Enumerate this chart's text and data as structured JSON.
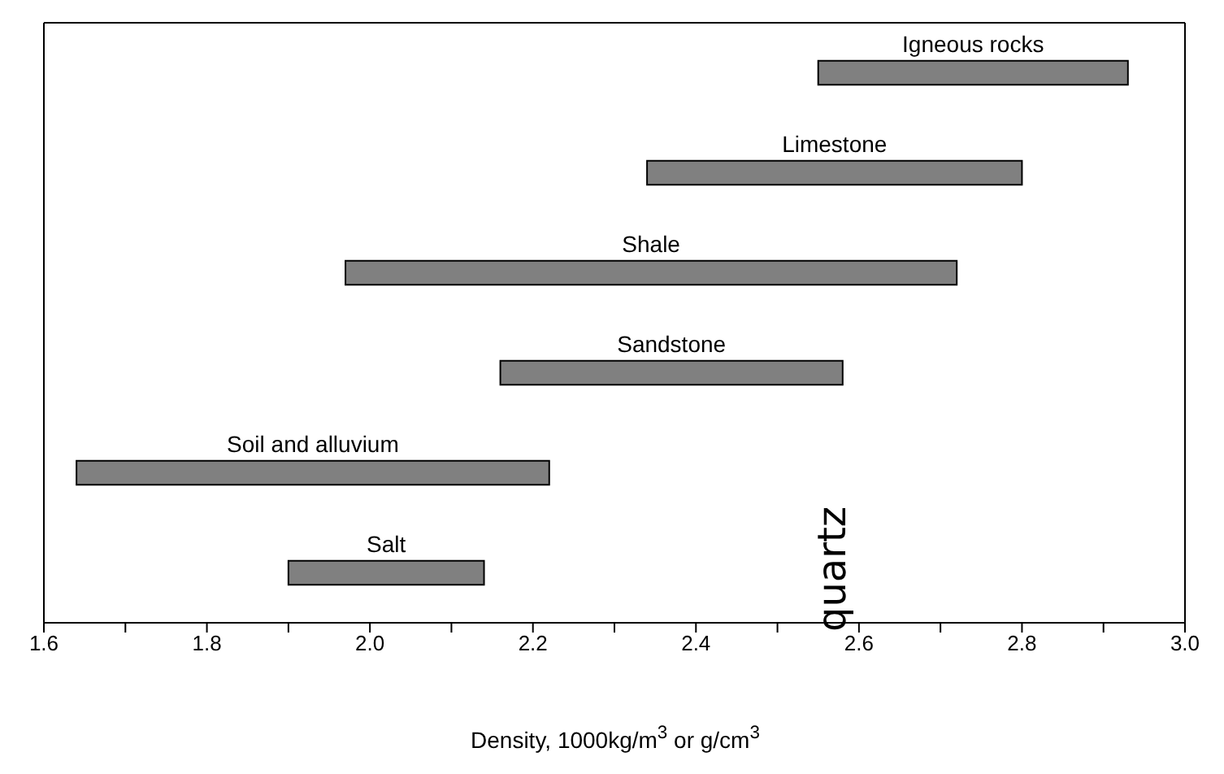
{
  "chart_data": {
    "type": "bar",
    "orientation": "horizontal",
    "xlabel": "Density, 1000kg/m$^{3}$ or g/cm$^{3}$",
    "categories": [
      "Igneous rocks",
      "Limestone",
      "Shale",
      "Sandstone",
      "Soil and alluvium",
      "Salt"
    ],
    "base": [
      2.55,
      2.34,
      1.97,
      2.16,
      1.64,
      1.9
    ],
    "values": [
      0.38,
      0.46,
      0.75,
      0.42,
      0.58,
      0.24
    ],
    "color": "#808080",
    "xlim": [
      1.6,
      3.0
    ],
    "xticks": [
      1.6,
      {
        "value": 1.7,
        "label": null
      },
      1.8,
      {
        "value": 1.9,
        "label": null
      },
      {
        "value": 2.0,
        "label": "2.0"
      },
      {
        "value": 2.1,
        "label": null
      },
      2.2,
      {
        "value": 2.3,
        "label": null
      },
      2.4,
      {
        "value": 2.5,
        "label": null
      },
      2.6,
      {
        "value": 2.7,
        "label": null
      },
      2.8,
      {
        "value": 2.9,
        "label": null
      },
      {
        "value": 3.0,
        "label": "3.0"
      }
    ],
    "annotations": [
      "quartz"
    ]
  }
}
